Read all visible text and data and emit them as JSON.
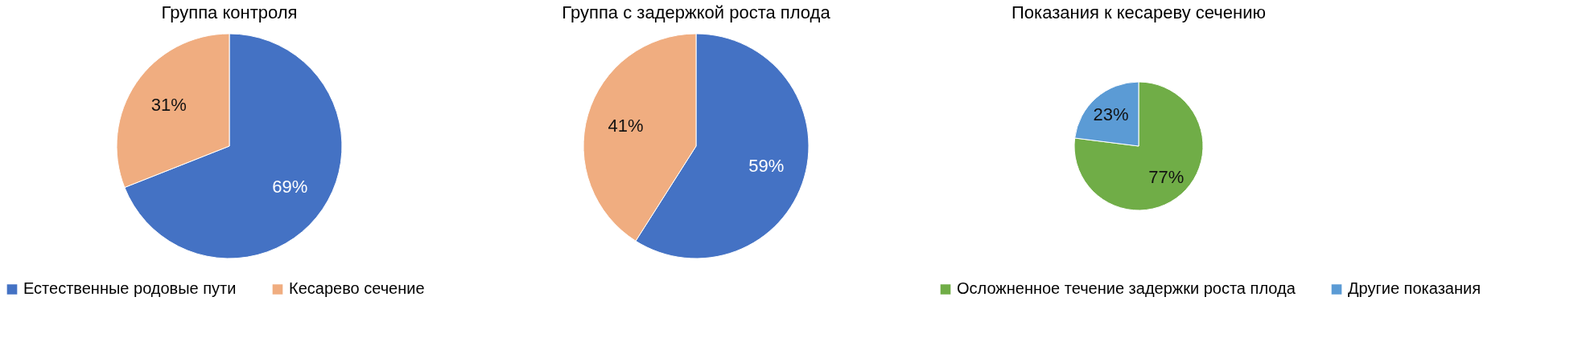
{
  "chart_data": [
    {
      "type": "pie",
      "title": "Группа контроля",
      "categories": [
        "Естественные родовые пути",
        "Кесарево сечение"
      ],
      "values": [
        69,
        31
      ],
      "colors": [
        "#4472c4",
        "#f0ad80"
      ],
      "value_labels": [
        "69%",
        "31%"
      ],
      "legend": "bottom"
    },
    {
      "type": "pie",
      "title": "Группа с задержкой роста плода",
      "categories": [
        null,
        null
      ],
      "values": [
        59,
        41
      ],
      "colors": [
        "#4472c4",
        "#f0ad80"
      ],
      "value_labels": [
        "59%",
        "41%"
      ]
    },
    {
      "type": "pie",
      "title": "Показания к кесареву сечению",
      "categories": [
        "Осложненное течение задержки роста плода",
        "Другие показания"
      ],
      "values": [
        77,
        23
      ],
      "colors": [
        "#70ad47",
        "#5b9bd5"
      ],
      "value_labels": [
        "77%",
        "23%"
      ],
      "legend": "bottom"
    }
  ]
}
